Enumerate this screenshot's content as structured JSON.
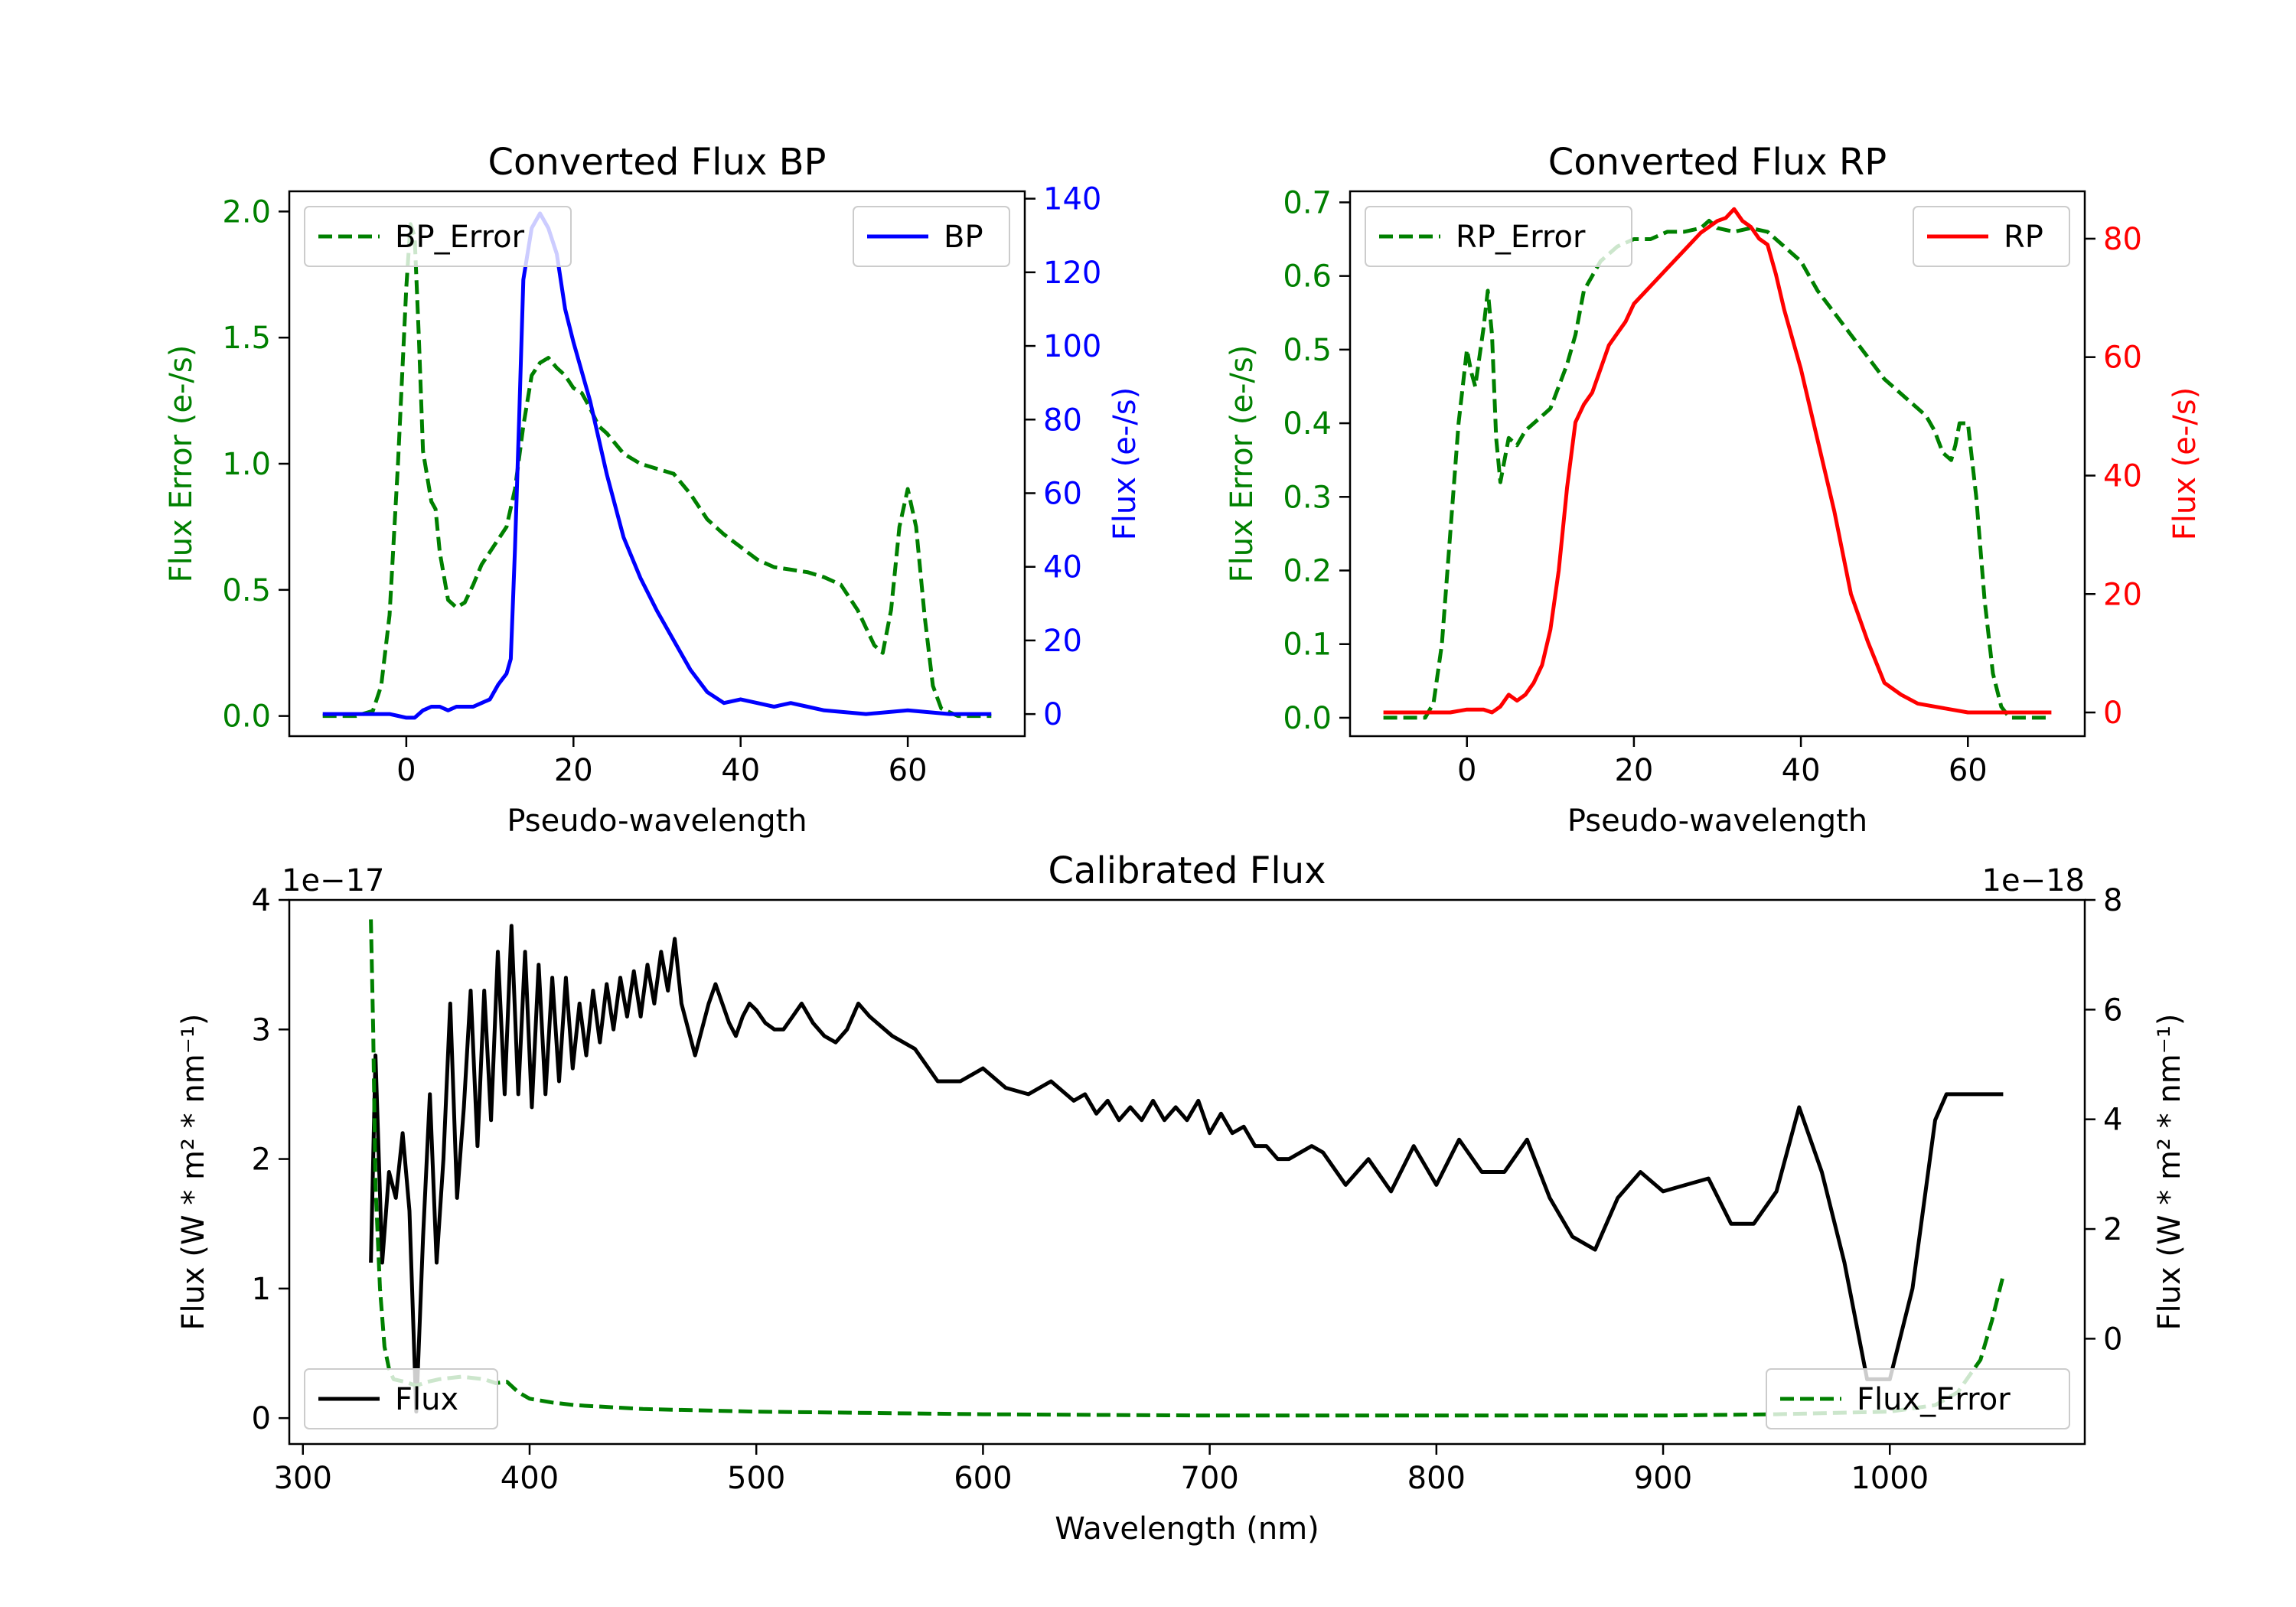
{
  "chart_data": [
    {
      "type": "line",
      "title": "Converted Flux BP",
      "xlabel": "Pseudo-wavelength",
      "ylabel_left": "Flux Error (e-/s)",
      "ylabel_right": "Flux (e-/s)",
      "xlim": [
        -14,
        74
      ],
      "ylim_left": [
        -0.08,
        2.08
      ],
      "ylim_right": [
        -6,
        142
      ],
      "xticks": [
        0,
        20,
        40,
        60
      ],
      "yticks_left": [
        "0.0",
        "0.5",
        "1.0",
        "1.5",
        "2.0"
      ],
      "yticks_right": [
        "0",
        "20",
        "40",
        "60",
        "80",
        "100",
        "120",
        "140"
      ],
      "legend_left": "upper-left",
      "legend_right": "upper-right",
      "series": [
        {
          "name": "BP_Error",
          "axis": "left",
          "color": "#008000",
          "style": "dashed",
          "x": [
            -10,
            -6,
            -4,
            -3,
            -2,
            -1,
            0,
            0.5,
            1,
            1.5,
            2,
            3,
            3.5,
            4,
            5,
            6,
            7,
            8,
            9,
            10,
            11,
            12,
            13,
            14,
            15,
            16,
            17,
            18,
            19,
            20,
            21,
            22,
            23,
            24,
            25,
            26,
            27,
            28,
            30,
            32,
            34,
            36,
            38,
            40,
            42,
            44,
            46,
            48,
            50,
            52,
            54,
            55,
            56,
            57,
            58,
            59,
            60,
            61,
            62,
            63,
            64,
            66,
            68,
            70
          ],
          "values": [
            0.0,
            0.0,
            0.02,
            0.12,
            0.4,
            1.0,
            1.7,
            1.95,
            1.9,
            1.5,
            1.05,
            0.85,
            0.82,
            0.65,
            0.46,
            0.43,
            0.45,
            0.52,
            0.6,
            0.65,
            0.7,
            0.75,
            0.9,
            1.15,
            1.35,
            1.4,
            1.42,
            1.38,
            1.35,
            1.3,
            1.28,
            1.22,
            1.15,
            1.12,
            1.08,
            1.04,
            1.02,
            1.0,
            0.98,
            0.96,
            0.88,
            0.78,
            0.72,
            0.67,
            0.62,
            0.59,
            0.58,
            0.57,
            0.55,
            0.52,
            0.42,
            0.35,
            0.28,
            0.25,
            0.42,
            0.75,
            0.9,
            0.75,
            0.4,
            0.12,
            0.03,
            0.0,
            0.0,
            0.0
          ]
        },
        {
          "name": "BP",
          "axis": "right",
          "color": "#0000ff",
          "style": "solid",
          "x": [
            -10,
            -4,
            -2,
            -1,
            0,
            1,
            2,
            3,
            4,
            5,
            6,
            7,
            8,
            9,
            10,
            11,
            12,
            12.5,
            13,
            13.5,
            14,
            15,
            16,
            17,
            18,
            19,
            20,
            22,
            24,
            26,
            28,
            30,
            32,
            34,
            36,
            38,
            40,
            42,
            44,
            46,
            48,
            50,
            55,
            60,
            65,
            70
          ],
          "values": [
            0,
            0,
            0,
            -0.5,
            -1,
            -1,
            1,
            2,
            2,
            1,
            2,
            2,
            2,
            3,
            4,
            8,
            11,
            15,
            45,
            80,
            118,
            132,
            136,
            132,
            125,
            110,
            101,
            85,
            65,
            48,
            37,
            28,
            20,
            12,
            6,
            3,
            4,
            3,
            2,
            3,
            2,
            1,
            0,
            1,
            0,
            0
          ]
        }
      ]
    },
    {
      "type": "line",
      "title": "Converted Flux RP",
      "xlabel": "Pseudo-wavelength",
      "ylabel_left": "Flux Error (e-/s)",
      "ylabel_right": "Flux (e-/s)",
      "xlim": [
        -14,
        74
      ],
      "ylim_left": [
        -0.025,
        0.715
      ],
      "ylim_right": [
        -4,
        88
      ],
      "xticks": [
        0,
        20,
        40,
        60
      ],
      "yticks_left": [
        "0.0",
        "0.1",
        "0.2",
        "0.3",
        "0.4",
        "0.5",
        "0.6",
        "0.7"
      ],
      "yticks_right": [
        "0",
        "20",
        "40",
        "60",
        "80"
      ],
      "legend_left": "upper-left",
      "legend_right": "upper-right",
      "series": [
        {
          "name": "RP_Error",
          "axis": "left",
          "color": "#008000",
          "style": "dashed",
          "x": [
            -10,
            -5,
            -4,
            -3,
            -2,
            -1,
            0,
            0.5,
            1,
            2,
            2.5,
            3,
            3.5,
            4,
            5,
            6,
            7,
            8,
            9,
            10,
            11,
            12,
            13,
            14,
            15,
            16,
            18,
            20,
            22,
            24,
            26,
            28,
            29,
            30,
            32,
            34,
            36,
            38,
            40,
            42,
            44,
            46,
            48,
            50,
            52,
            54,
            55,
            56,
            57,
            58,
            58.5,
            59,
            60,
            61,
            62,
            63,
            64,
            65,
            66,
            70
          ],
          "values": [
            0.0,
            0.0,
            0.02,
            0.1,
            0.25,
            0.4,
            0.5,
            0.47,
            0.45,
            0.53,
            0.58,
            0.52,
            0.38,
            0.32,
            0.38,
            0.37,
            0.39,
            0.4,
            0.41,
            0.42,
            0.45,
            0.48,
            0.52,
            0.58,
            0.6,
            0.62,
            0.64,
            0.65,
            0.65,
            0.66,
            0.66,
            0.665,
            0.675,
            0.665,
            0.66,
            0.665,
            0.66,
            0.64,
            0.62,
            0.58,
            0.55,
            0.52,
            0.49,
            0.46,
            0.44,
            0.42,
            0.41,
            0.39,
            0.36,
            0.35,
            0.37,
            0.4,
            0.4,
            0.3,
            0.16,
            0.06,
            0.015,
            0.0,
            0.0,
            0.0
          ]
        },
        {
          "name": "RP",
          "axis": "right",
          "color": "#ff0000",
          "style": "solid",
          "x": [
            -10,
            -4,
            -2,
            0,
            1,
            2,
            3,
            4,
            5,
            6,
            7,
            8,
            9,
            10,
            11,
            12,
            13,
            14,
            15,
            16,
            17,
            18,
            19,
            20,
            22,
            24,
            26,
            28,
            30,
            31,
            32,
            33,
            34,
            35,
            36,
            37,
            38,
            39,
            40,
            42,
            44,
            46,
            48,
            50,
            52,
            54,
            56,
            58,
            60,
            65,
            70
          ],
          "values": [
            0,
            0,
            0,
            0.5,
            0.5,
            0.5,
            0,
            1,
            3,
            2,
            3,
            5,
            8,
            14,
            24,
            38,
            49,
            52,
            54,
            58,
            62,
            64,
            66,
            69,
            72,
            75,
            78,
            81,
            83,
            83.5,
            85,
            83,
            82,
            80,
            79,
            74,
            68,
            63,
            58,
            46,
            34,
            20,
            12,
            5,
            3,
            1.5,
            1,
            0.5,
            0,
            0,
            0
          ]
        }
      ]
    },
    {
      "type": "line",
      "title": "Calibrated Flux",
      "xlabel": "Wavelength (nm)",
      "ylabel_left": "Flux (W * m² * nm⁻¹)",
      "ylabel_right": "Flux (W * m² * nm⁻¹)",
      "offset_left": "1e−17",
      "offset_right": "1e−18",
      "xlim": [
        294,
        1086
      ],
      "ylim_left": [
        -0.2,
        4.0
      ],
      "ylim_right": [
        -1.92,
        8.0
      ],
      "xticks": [
        300,
        400,
        500,
        600,
        700,
        800,
        900,
        1000
      ],
      "yticks_left": [
        "0",
        "1",
        "2",
        "3",
        "4"
      ],
      "yticks_right": [
        "0",
        "2",
        "4",
        "6",
        "8"
      ],
      "legend_left": "lower-left",
      "legend_right": "lower-right",
      "series": [
        {
          "name": "Flux",
          "axis": "left",
          "color": "#000000",
          "style": "solid",
          "x": [
            330,
            332,
            335,
            338,
            341,
            344,
            347,
            350,
            353,
            356,
            359,
            362,
            365,
            368,
            371,
            374,
            377,
            380,
            383,
            386,
            389,
            392,
            395,
            398,
            401,
            404,
            407,
            410,
            413,
            416,
            419,
            422,
            425,
            428,
            431,
            434,
            437,
            440,
            443,
            446,
            449,
            452,
            455,
            458,
            461,
            464,
            467,
            470,
            473,
            476,
            479,
            482,
            485,
            488,
            491,
            494,
            497,
            500,
            504,
            508,
            512,
            516,
            520,
            525,
            530,
            535,
            540,
            545,
            550,
            560,
            570,
            580,
            590,
            600,
            610,
            620,
            630,
            640,
            645,
            650,
            655,
            660,
            665,
            670,
            675,
            680,
            685,
            690,
            695,
            700,
            705,
            710,
            715,
            720,
            725,
            730,
            735,
            740,
            745,
            750,
            760,
            770,
            780,
            790,
            800,
            810,
            820,
            830,
            840,
            850,
            860,
            870,
            880,
            890,
            900,
            910,
            920,
            930,
            940,
            950,
            960,
            970,
            980,
            990,
            1000,
            1010,
            1020,
            1025,
            1030,
            1035,
            1040,
            1045,
            1050
          ],
          "values": [
            1.2,
            2.8,
            1.2,
            1.9,
            1.7,
            2.2,
            1.6,
            0.05,
            1.4,
            2.5,
            1.2,
            2.0,
            3.2,
            1.7,
            2.4,
            3.3,
            2.1,
            3.3,
            2.3,
            3.6,
            2.5,
            3.8,
            2.5,
            3.6,
            2.4,
            3.5,
            2.5,
            3.4,
            2.6,
            3.4,
            2.7,
            3.2,
            2.8,
            3.3,
            2.9,
            3.35,
            3.0,
            3.4,
            3.1,
            3.45,
            3.1,
            3.5,
            3.2,
            3.6,
            3.3,
            3.7,
            3.2,
            3.0,
            2.8,
            3.0,
            3.2,
            3.35,
            3.2,
            3.05,
            2.95,
            3.1,
            3.2,
            3.15,
            3.05,
            3.0,
            3.0,
            3.1,
            3.2,
            3.05,
            2.95,
            2.9,
            3.0,
            3.2,
            3.1,
            2.95,
            2.85,
            2.6,
            2.6,
            2.7,
            2.55,
            2.5,
            2.6,
            2.45,
            2.5,
            2.35,
            2.45,
            2.3,
            2.4,
            2.3,
            2.45,
            2.3,
            2.4,
            2.3,
            2.45,
            2.2,
            2.35,
            2.2,
            2.25,
            2.1,
            2.1,
            2.0,
            2.0,
            2.05,
            2.1,
            2.05,
            1.8,
            2.0,
            1.75,
            2.1,
            1.8,
            2.15,
            1.9,
            1.9,
            2.15,
            1.7,
            1.4,
            1.3,
            1.7,
            1.9,
            1.75,
            1.8,
            1.85,
            1.5,
            1.5,
            1.75,
            2.4,
            1.9,
            1.2,
            0.3,
            0.3,
            1.0,
            2.3,
            2.5,
            2.5,
            2.5,
            2.5,
            2.5,
            2.5
          ]
        },
        {
          "name": "Flux_Error",
          "axis": "left",
          "color": "#008000",
          "style": "dashed",
          "x": [
            330,
            331,
            332,
            334,
            336,
            338,
            340,
            345,
            350,
            355,
            360,
            370,
            380,
            385,
            390,
            395,
            400,
            410,
            420,
            430,
            450,
            500,
            600,
            700,
            800,
            900,
            950,
            1000,
            1020,
            1030,
            1040,
            1045,
            1050
          ],
          "values": [
            3.85,
            3.0,
            1.8,
            1.0,
            0.55,
            0.38,
            0.3,
            0.28,
            0.25,
            0.28,
            0.3,
            0.32,
            0.3,
            0.27,
            0.28,
            0.2,
            0.15,
            0.12,
            0.1,
            0.09,
            0.07,
            0.05,
            0.03,
            0.02,
            0.02,
            0.02,
            0.03,
            0.05,
            0.1,
            0.2,
            0.45,
            0.75,
            1.1
          ]
        }
      ]
    }
  ]
}
